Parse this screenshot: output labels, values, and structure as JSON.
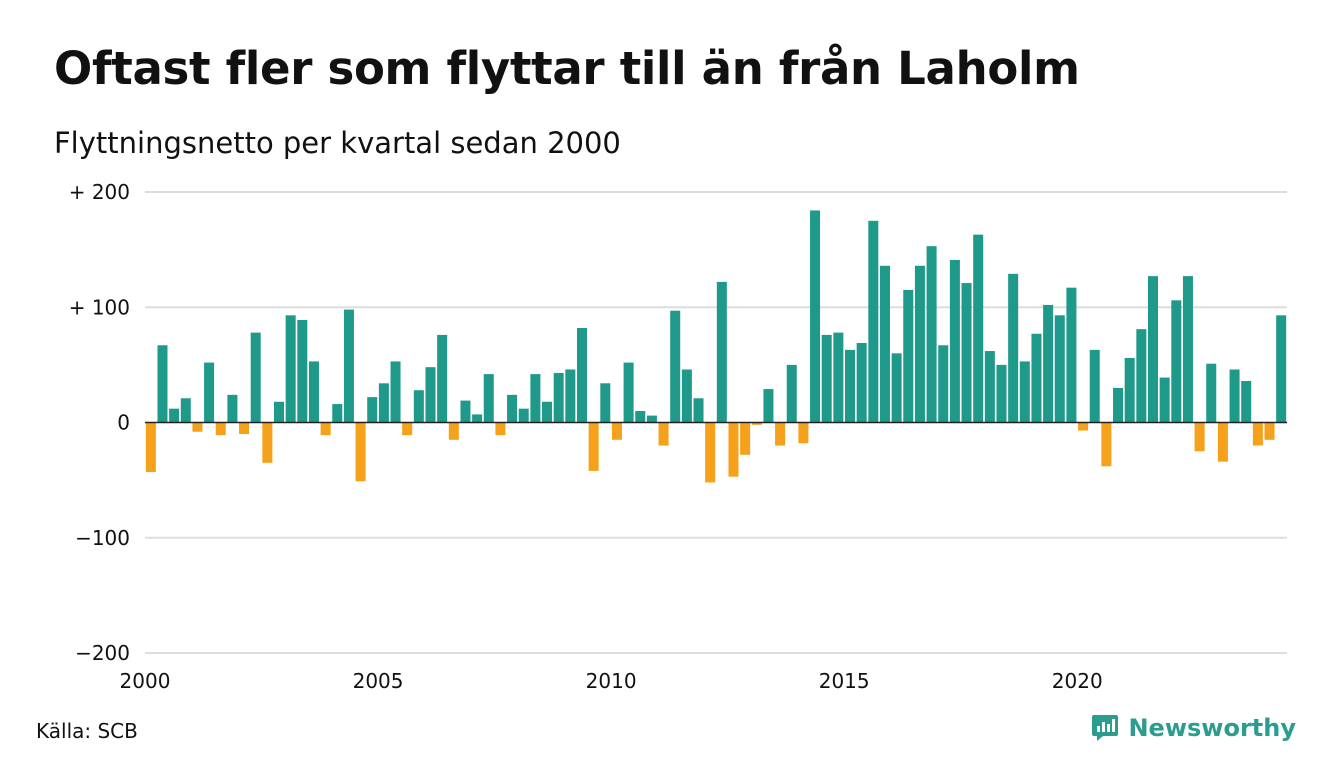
{
  "title": "Oftast fler som flyttar till än från Laholm",
  "subtitle": "Flyttningsnetto per kvartal sedan 2000",
  "source": "Källa: SCB",
  "brand": {
    "name": "Newsworthy",
    "icon": "newsworthy-logo-icon"
  },
  "colors": {
    "positive": "#1f9a8a",
    "negative": "#f5a11c",
    "grid": "#dddddd",
    "axis": "#222222",
    "brand": "#2a9d8f"
  },
  "chart_data": {
    "type": "bar",
    "ylim": [
      -200,
      200
    ],
    "yticks": [
      {
        "value": 200,
        "label": "+ 200"
      },
      {
        "value": 100,
        "label": "+ 100"
      },
      {
        "value": 0,
        "label": "0"
      },
      {
        "value": -100,
        "label": "−100"
      },
      {
        "value": -200,
        "label": "−200"
      }
    ],
    "xticks": [
      "2000",
      "2005",
      "2010",
      "2015",
      "2020"
    ],
    "start_year": 2000,
    "grid": true,
    "series": [
      {
        "values": [
          -43,
          67,
          12,
          21,
          -8,
          52,
          -11,
          24,
          -10,
          78,
          -35,
          18,
          93,
          89,
          53,
          -11,
          16,
          98,
          -51,
          22,
          34,
          53,
          -11,
          28,
          48,
          76,
          -15,
          19,
          7,
          42,
          -11,
          24,
          12,
          42,
          18,
          43,
          46,
          82,
          -42,
          34,
          -15,
          52,
          10,
          6,
          -20,
          97,
          46,
          21,
          -52,
          122,
          -47,
          -28,
          -2,
          29,
          -20,
          50,
          -18,
          184,
          76,
          78,
          63,
          69,
          175,
          136,
          60,
          115,
          136,
          153,
          67,
          141,
          121,
          163,
          62,
          50,
          129,
          53,
          77,
          102,
          93,
          117,
          -7,
          63,
          -38,
          30,
          56,
          81,
          127,
          39,
          106,
          127,
          -25,
          51,
          -34,
          46,
          36,
          -20,
          -15,
          93
        ]
      }
    ]
  }
}
